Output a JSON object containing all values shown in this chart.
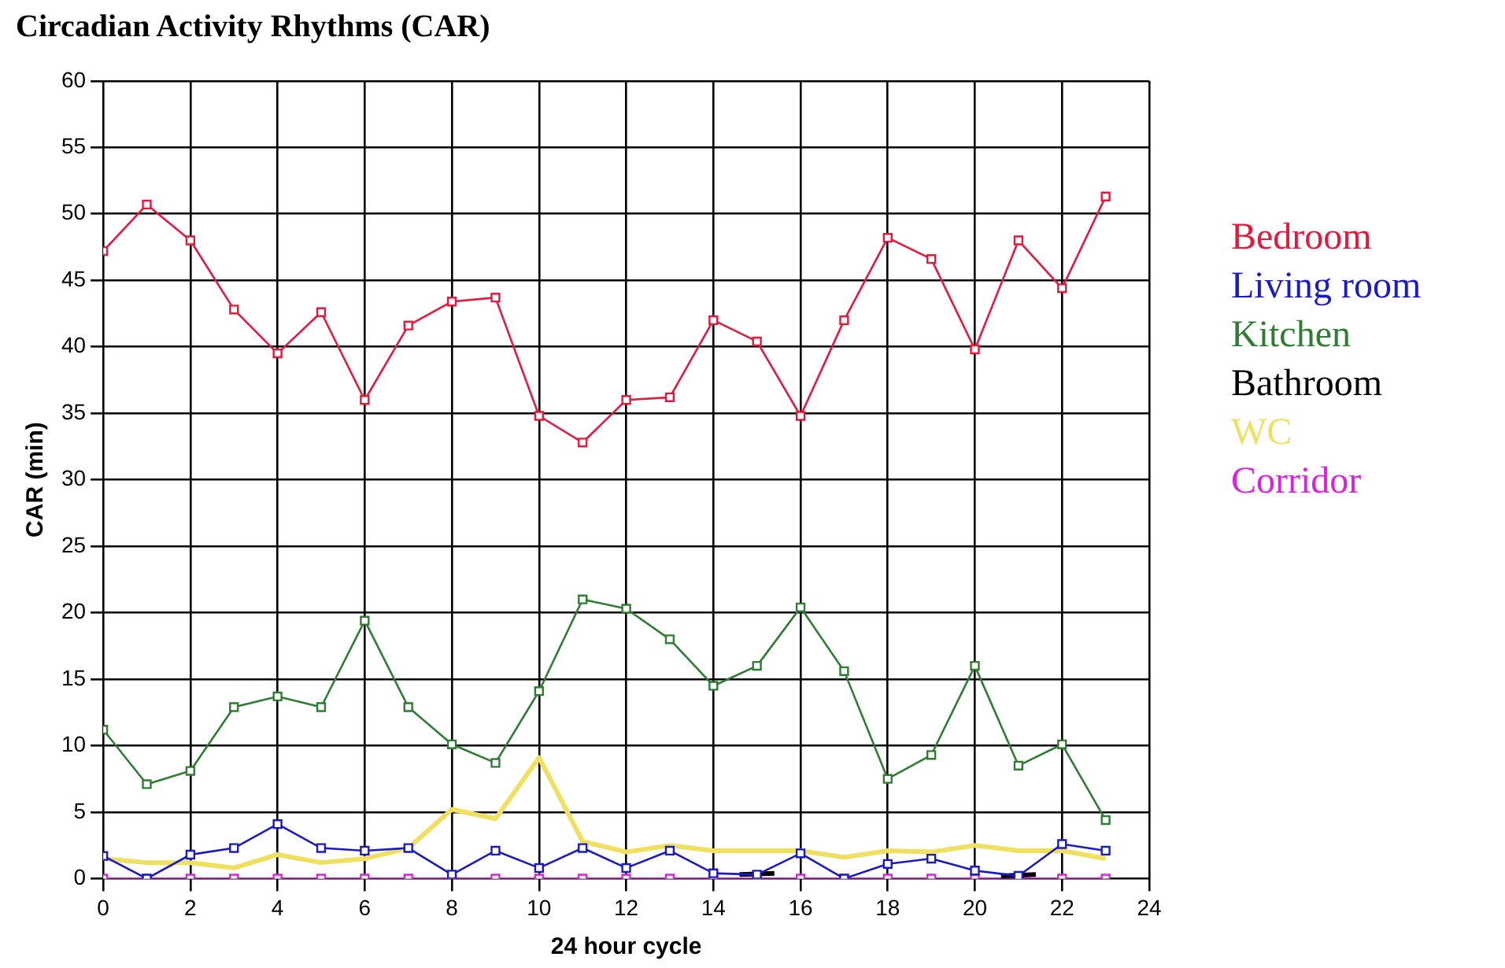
{
  "chart_data": {
    "type": "line",
    "title": "Circadian Activity Rhythms (CAR)",
    "xlabel": "24 hour cycle",
    "ylabel": "CAR (min)",
    "x": [
      0,
      1,
      2,
      3,
      4,
      5,
      6,
      7,
      8,
      9,
      10,
      11,
      12,
      13,
      14,
      15,
      16,
      17,
      18,
      19,
      20,
      21,
      22,
      23
    ],
    "xlim": [
      0,
      24
    ],
    "xticks": [
      0,
      2,
      4,
      6,
      8,
      10,
      12,
      14,
      16,
      18,
      20,
      22,
      24
    ],
    "ylim": [
      0,
      60
    ],
    "yticks": [
      0,
      5,
      10,
      15,
      20,
      25,
      30,
      35,
      40,
      45,
      50,
      55,
      60
    ],
    "grid": true,
    "legend": "right",
    "line_style": "solid",
    "series": [
      {
        "name": "Bedroom",
        "color": "#e8173c",
        "marker": "square",
        "values": [
          47.2,
          50.7,
          48,
          42.8,
          39.5,
          42.6,
          36,
          41.6,
          43.4,
          43.7,
          34.8,
          32.8,
          36,
          36.2,
          42,
          40.4,
          34.8,
          42,
          48.2,
          46.6,
          39.8,
          48,
          44.4,
          51.3
        ]
      },
      {
        "name": "Living room",
        "color": "#1a1ac8",
        "marker": "square",
        "values": [
          1.7,
          0,
          1.8,
          2.3,
          4.1,
          2.3,
          2.1,
          2.3,
          0.3,
          2.1,
          0.8,
          2.3,
          0.8,
          2.1,
          0.4,
          0.3,
          1.9,
          0,
          1.1,
          1.5,
          0.6,
          0.2,
          2.6,
          2.1
        ]
      },
      {
        "name": "Kitchen",
        "color": "#2e7d32",
        "marker": "square",
        "values": [
          11.2,
          7.1,
          8.1,
          12.9,
          13.7,
          12.9,
          19.4,
          12.9,
          10.1,
          8.7,
          14.1,
          21,
          20.3,
          18,
          14.5,
          16,
          20.4,
          15.6,
          7.5,
          9.3,
          16,
          8.5,
          10.1,
          4.4
        ]
      },
      {
        "name": "Bathroom",
        "color": "#000000",
        "marker": "none",
        "x": [
          14.6,
          15.4,
          18,
          20.6,
          21.4
        ],
        "values": [
          0.3,
          0.4,
          null,
          0.2,
          0.3
        ]
      },
      {
        "name": "WC",
        "color": "#f0e060",
        "marker": "none",
        "values": [
          1.5,
          1.2,
          1.2,
          0.8,
          1.8,
          1.2,
          1.5,
          2.3,
          5.2,
          4.5,
          9.1,
          2.8,
          2,
          2.5,
          2.1,
          2.1,
          2.1,
          1.6,
          2.1,
          2,
          2.5,
          2.1,
          2.1,
          1.5
        ]
      },
      {
        "name": "Corridor",
        "color": "#e020e0",
        "marker": "square",
        "values": [
          0,
          0,
          0,
          0,
          0,
          0,
          0,
          0,
          0,
          0,
          0,
          0,
          0,
          0,
          0,
          0,
          0,
          0,
          0,
          0,
          0,
          0,
          0,
          0
        ]
      }
    ]
  }
}
